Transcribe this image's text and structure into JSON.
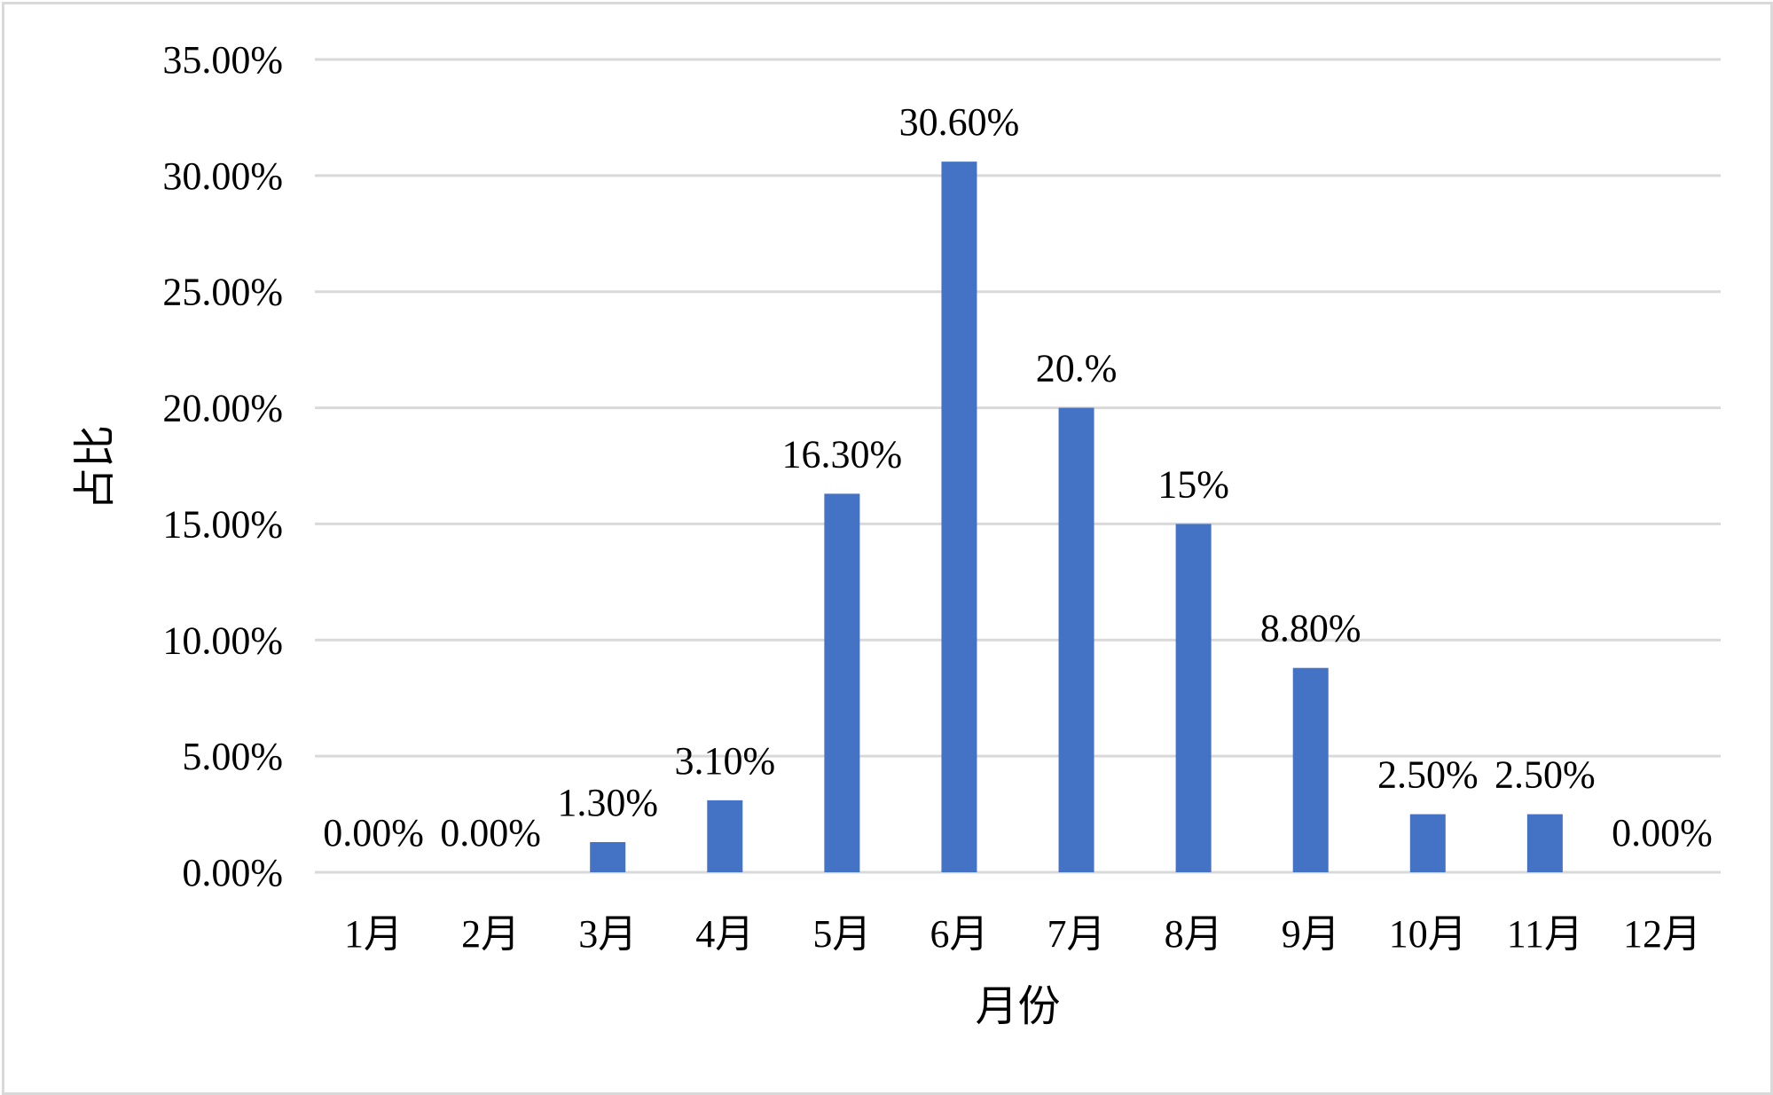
{
  "chart_data": {
    "type": "bar",
    "categories": [
      "1月",
      "2月",
      "3月",
      "4月",
      "5月",
      "6月",
      "7月",
      "8月",
      "9月",
      "10月",
      "11月",
      "12月"
    ],
    "values": [
      0.0,
      0.0,
      1.3,
      3.1,
      16.3,
      30.6,
      20.0,
      15.0,
      8.8,
      2.5,
      2.5,
      0.0
    ],
    "data_labels": [
      "0.00%",
      "0.00%",
      "1.30%",
      "3.10%",
      "16.30%",
      "30.60%",
      "20.%",
      "15%",
      "8.80%",
      "2.50%",
      "2.50%",
      "0.00%"
    ],
    "y_ticks": [
      0,
      5,
      10,
      15,
      20,
      25,
      30,
      35
    ],
    "y_tick_labels": [
      "0.00%",
      "5.00%",
      "10.00%",
      "15.00%",
      "20.00%",
      "25.00%",
      "30.00%",
      "35.00%"
    ],
    "ylim": [
      0,
      35
    ],
    "xlabel": "月份",
    "ylabel": "占比",
    "grid": true,
    "legend": "none",
    "bar_color": "#4472c4",
    "grid_color": "#d9d9d9"
  }
}
